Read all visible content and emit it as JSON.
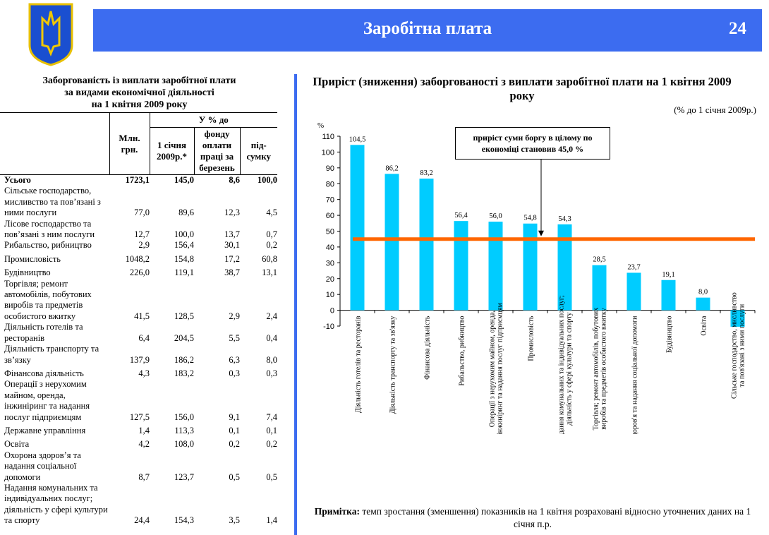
{
  "header": {
    "title": "Заробітна плата",
    "page": "24"
  },
  "table": {
    "title": [
      "Заборгованість із виплати заробітної плати",
      "за видами економічної діяльності",
      "на 1 квітня 2009 року"
    ],
    "group_header": "У % до",
    "columns": [
      "Млн. грн.",
      "1 січня 2009р.*",
      "фонду оплати праці за березень",
      "під-сумку"
    ],
    "rows": [
      {
        "label": "Усього",
        "values": [
          "1723,1",
          "145,0",
          "8,6",
          "100,0"
        ],
        "bold": true
      },
      {
        "label": "Сільське господарство, мисливство та пов’язані з ними послуги",
        "values": [
          "77,0",
          "89,6",
          "12,3",
          "4,5"
        ]
      },
      {
        "label": "Лісове господарство  та пов’язані з ним послуги",
        "values": [
          "12,7",
          "100,0",
          "13,7",
          "0,7"
        ]
      },
      {
        "label": "Рибальство, рибництво",
        "values": [
          "2,9",
          "156,4",
          "30,1",
          "0,2"
        ]
      },
      {
        "label": "Промисловість",
        "values": [
          "1048,2",
          "154,8",
          "17,2",
          "60,8"
        ],
        "gap": true
      },
      {
        "label": "Будівництво",
        "values": [
          "226,0",
          "119,1",
          "38,7",
          "13,1"
        ],
        "gap": true
      },
      {
        "label": "Торгівля; ремонт автомобілів, побутових виробів та предметів особистого вжитку",
        "values": [
          "41,5",
          "128,5",
          "2,9",
          "2,4"
        ]
      },
      {
        "label": "Діяльність готелів та ресторанів",
        "values": [
          "6,4",
          "204,5",
          "5,5",
          "0,4"
        ]
      },
      {
        "label": "Діяльність транспорту та зв’язку",
        "values": [
          "137,9",
          "186,2",
          "6,3",
          "8,0"
        ]
      },
      {
        "label": "Фінансова діяльність",
        "values": [
          "4,3",
          "183,2",
          "0,3",
          "0,3"
        ],
        "gap": true
      },
      {
        "label": "Операції з нерухомим майном, оренда, інжиніринг та надання послуг підприємцям",
        "values": [
          "127,5",
          "156,0",
          "9,1",
          "7,4"
        ]
      },
      {
        "label": "Державне управління",
        "values": [
          "1,4",
          "113,3",
          "0,1",
          "0,1"
        ],
        "gap": true
      },
      {
        "label": "Освіта",
        "values": [
          "4,2",
          "108,0",
          "0,2",
          "0,2"
        ],
        "gap": true
      },
      {
        "label": "Охорона здоров’я та надання соціальної допомоги",
        "values": [
          "8,7",
          "123,7",
          "0,5",
          "0,5"
        ]
      },
      {
        "label": "Надання комунальних та індивідуальних послуг; діяльність у сфері культури та спорту",
        "values": [
          "24,4",
          "154,3",
          "3,5",
          "1,4"
        ]
      }
    ]
  },
  "chart_data": {
    "type": "bar",
    "title": "Приріст (зниження) заборгованості з виплати заробітної плати на 1 квітня 2009 року",
    "subtitle": "(% до 1 січня 2009р.)",
    "ylabel": "%",
    "ylim": [
      -10,
      110
    ],
    "yticks": [
      -10,
      0,
      10,
      20,
      30,
      40,
      50,
      60,
      70,
      80,
      90,
      100,
      110
    ],
    "categories": [
      "Діяльність готелів та ресторанів",
      "Діяльність транспорту та зв'язку",
      "Фінансова діяльність",
      "Рибальство, рибництво",
      "Операції з нерухомим майном, оренда, інжиніринг та надання послуг підприємцям",
      "Промисловість",
      "Надання комунальних та індивідуальних послуг; діяльність у сфері культури та спорту",
      "Торгівля; ремонт автомобілів, побутових виробів та предметів особистого вжитку",
      "Охорона здоров'я та надання соціальної допомоги",
      "Будівництво",
      "Освіта",
      "Сільське господарство, мисливство та пов'язані з ними послуги"
    ],
    "values": [
      104.5,
      86.2,
      83.2,
      56.4,
      56.0,
      54.8,
      54.3,
      28.5,
      23.7,
      19.1,
      8.0,
      -10.4
    ],
    "value_labels": [
      "104,5",
      "86,2",
      "83,2",
      "56,4",
      "56,0",
      "54,8",
      "54,3",
      "28,5",
      "23,7",
      "19,1",
      "8,0",
      ""
    ],
    "reference_line": 45.0,
    "annotation": "приріст суми боргу в цілому по економіці становив 45,0 %",
    "bar_color": "#00ccff",
    "line_color": "#ff6600"
  },
  "note": {
    "bold": "Примітка:",
    "text": " темп зростання (зменшення) показників на 1 квітня розраховані відносно уточнених даних на 1 січня п.р."
  }
}
